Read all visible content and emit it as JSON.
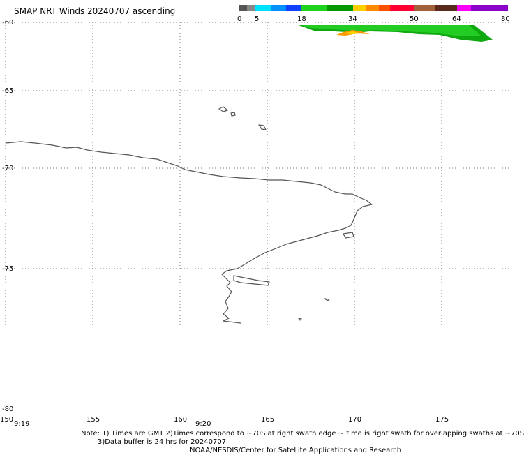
{
  "title": "SMAP NRT Winds 20240707 ascending",
  "colorbar": {
    "ticks": [
      "0",
      "5",
      "18",
      "34",
      "50",
      "64",
      "80"
    ],
    "segments": [
      {
        "from": 0,
        "to": 5,
        "color": "#5a5a5a"
      },
      {
        "from": 5,
        "to": 18,
        "color": "#1e8cff"
      },
      {
        "from": 18,
        "to": 34,
        "color": "#1fc81f"
      },
      {
        "from": 34,
        "to": 50,
        "color": "#ff3020"
      },
      {
        "from": 50,
        "to": 64,
        "color": "#8b5a3c"
      },
      {
        "from": 64,
        "to": 80,
        "color": "#c020c0"
      }
    ]
  },
  "lat_labels": [
    "-60",
    "-65",
    "-70",
    "-75",
    "-80"
  ],
  "lon_labels": [
    "150",
    "155",
    "160",
    "165",
    "170",
    "175"
  ],
  "times": [
    "9:19",
    "9:20"
  ],
  "notes": [
    "Note: 1) Times are GMT 2)Times correspond to ~70S at right swath edge ~ time is right swath for overlapping swaths at ~70S",
    "3)Data buffer is 24 hrs for 20240707",
    "NOAA/NESDIS/Center for Satellite Applications and Research"
  ]
}
